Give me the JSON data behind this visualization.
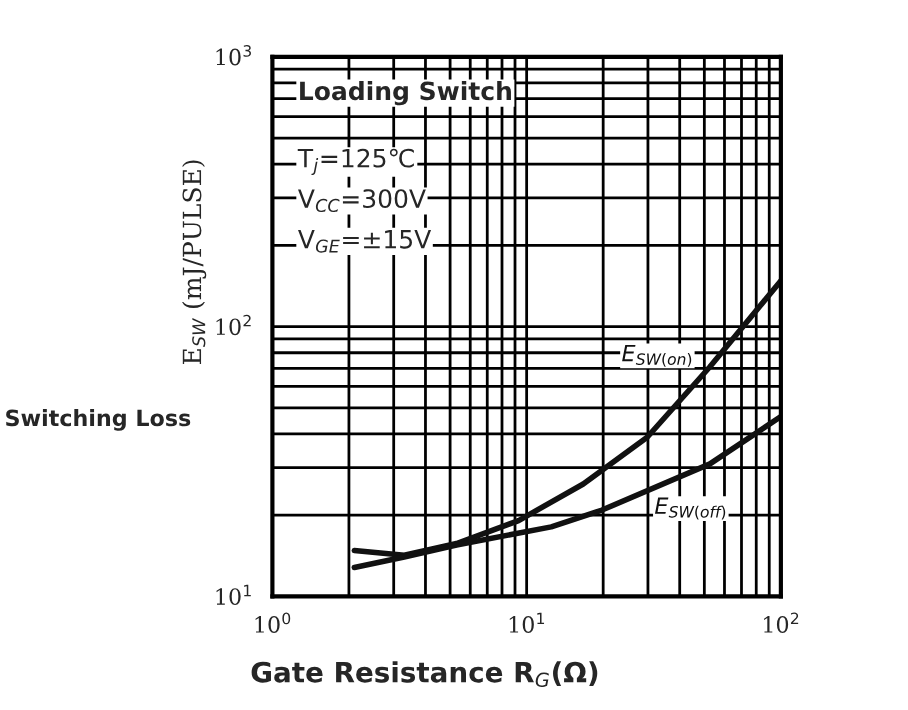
{
  "chart_data": {
    "type": "line",
    "xlabel": "Gate Resistance R$_{G}$(Ω)",
    "ylabel": "E$_{SW}$ (mJ/PULSE)",
    "annotations": [
      "Loading Switch",
      "T$_{j}$=125℃",
      "V$_{CC}$=300V",
      "V$_{GE}$=±15V",
      "Switching Loss"
    ],
    "log": "xy",
    "grid": true,
    "marker": "none",
    "line_style": "solid",
    "xlim": [
      1,
      100
    ],
    "xticks": [
      {
        "value": 1,
        "label": "10$^{0}$"
      },
      {
        "value": 10,
        "label": "10$^{1}$"
      },
      {
        "value": 100,
        "label": "10$^{2}$"
      }
    ],
    "ylim": [
      10,
      1000
    ],
    "yticks": [
      {
        "value": 10,
        "label": "10$^{1}$"
      },
      {
        "value": 100,
        "label": "10$^{2}$"
      },
      {
        "value": 1000,
        "label": "10$^{3}$"
      }
    ],
    "series": [
      {
        "name": "E$_{SW(on)}$",
        "color": "#111111",
        "x": [
          2.1,
          3.3,
          5.3,
          9.3,
          16.7,
          29.8,
          52.6,
          100
        ],
        "values": [
          14.8,
          14.2,
          15.7,
          19.1,
          26.1,
          38.9,
          71,
          148
        ]
      },
      {
        "name": "E$_{SW(off)}$",
        "color": "#111111",
        "x": [
          2.1,
          3.3,
          5.3,
          12.5,
          19.8,
          52.6,
          100
        ],
        "values": [
          12.8,
          14.0,
          15.5,
          18.1,
          20.9,
          31,
          46.4
        ]
      }
    ]
  }
}
